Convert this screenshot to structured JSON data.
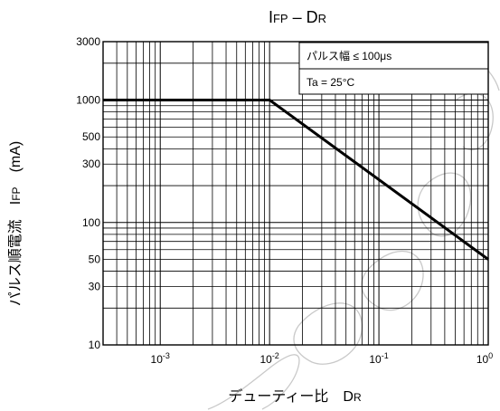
{
  "chart_data": {
    "type": "line",
    "title": {
      "main": "I",
      "sub": "FP",
      "dash": " – D",
      "sub2": "R"
    },
    "xlabel": {
      "main": "デューティー比　D",
      "sub": "R"
    },
    "ylabel": {
      "main": "パルス順電流　I",
      "sub": "FP",
      "tail": "　(mA)"
    },
    "x_scale": "log",
    "y_scale": "log",
    "xlim": [
      0.0003,
      1
    ],
    "ylim": [
      10,
      3000
    ],
    "x_ticks": [
      {
        "value": 0.001,
        "base": "10",
        "exp": "-3"
      },
      {
        "value": 0.01,
        "base": "10",
        "exp": "-2"
      },
      {
        "value": 0.1,
        "base": "10",
        "exp": "-1"
      },
      {
        "value": 1,
        "base": "10",
        "exp": "0"
      }
    ],
    "y_ticks": [
      {
        "value": 3000,
        "label": "3000"
      },
      {
        "value": 1000,
        "label": "1000"
      },
      {
        "value": 500,
        "label": "500"
      },
      {
        "value": 300,
        "label": "300"
      },
      {
        "value": 100,
        "label": "100"
      },
      {
        "value": 50,
        "label": "50"
      },
      {
        "value": 30,
        "label": "30"
      },
      {
        "value": 10,
        "label": "10"
      }
    ],
    "grid": true,
    "annotations": [
      "パルス幅 ≤ 100μs",
      "Ta = 25°C"
    ],
    "series": [
      {
        "x": [
          0.0003,
          0.01,
          1
        ],
        "y": [
          1000,
          1000,
          50
        ]
      }
    ],
    "colors": {
      "line": "#000000",
      "grid": "#000000",
      "watermark": "#c9c9c9"
    }
  }
}
